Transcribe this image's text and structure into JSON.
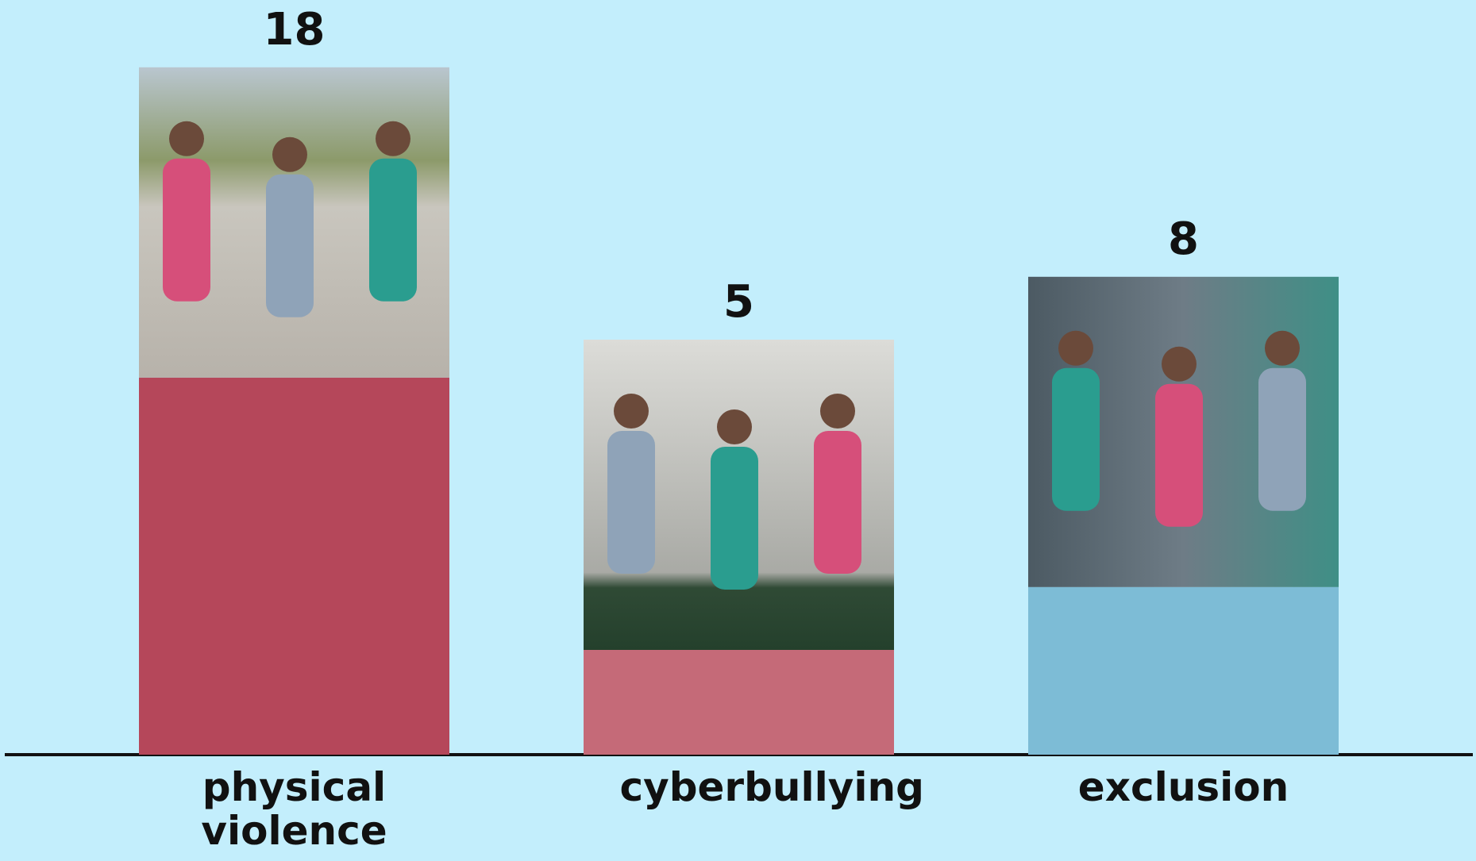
{
  "chart_data": {
    "type": "bar",
    "categories": [
      "physical violence",
      "cyberbullying",
      "exclusion"
    ],
    "values": [
      18,
      5,
      8
    ],
    "colors": [
      "#b5475a",
      "#c56a78",
      "#7dbcd6"
    ]
  }
}
